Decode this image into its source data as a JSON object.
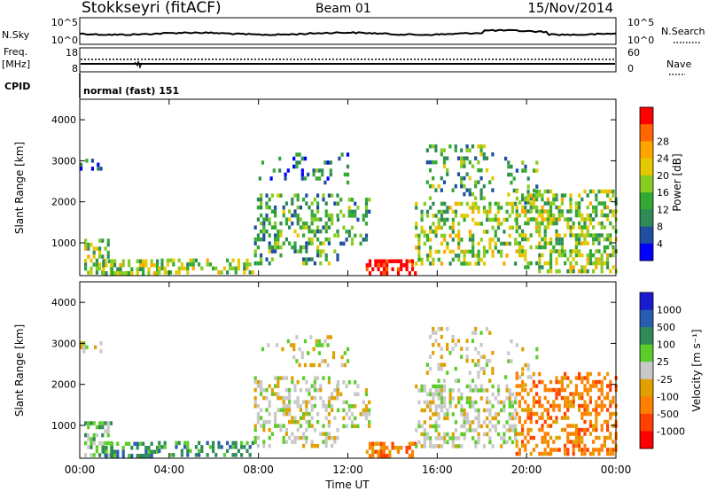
{
  "header": {
    "station": "Stokkseyri (fitACF)",
    "beam": "Beam 01",
    "date": "15/Nov/2014"
  },
  "noise_panel": {
    "left_label": "N.Sky",
    "left_ticks": [
      "10^5",
      "10^0"
    ],
    "right_label": "N.Search",
    "right_ticks": [
      "10^5",
      "10^0"
    ]
  },
  "freq_panel": {
    "left_label_1": "Freq.",
    "left_label_2": "[MHz]",
    "left_ticks": [
      "18",
      "8"
    ],
    "right_label": "Nave",
    "right_ticks": [
      "60",
      "0"
    ]
  },
  "cpid": {
    "label": "CPID",
    "program": "normal (fast) 151"
  },
  "colors": {
    "power": [
      "#0000ff",
      "#1e4fa0",
      "#2e8b57",
      "#33a833",
      "#88cc22",
      "#e6c800",
      "#ffa500",
      "#ff6600",
      "#ff0000"
    ],
    "velocity": [
      "#1a1ad0",
      "#2a5db0",
      "#2e8b57",
      "#5ccc2a",
      "#c8c8c8",
      "#e0a000",
      "#ff8000",
      "#ff4000",
      "#ff0000"
    ]
  },
  "chart_data": [
    {
      "type": "heatmap",
      "title": "",
      "xlabel": "Time UT",
      "ylabel": "Slant Range [km]",
      "x_ticks": [
        "00:00",
        "04:00",
        "08:00",
        "12:00",
        "16:00",
        "20:00",
        "00:00"
      ],
      "y_ticks": [
        "1000",
        "2000",
        "3000",
        "4000"
      ],
      "ylim": [
        200,
        4500
      ],
      "colorbar_label": "Power [dB]",
      "colorbar_ticks": [
        "4",
        "8",
        "12",
        "16",
        "20",
        "24",
        "28"
      ]
    },
    {
      "type": "heatmap",
      "title": "",
      "xlabel": "Time UT",
      "ylabel": "Slant Range [km]",
      "x_ticks": [
        "00:00",
        "04:00",
        "08:00",
        "12:00",
        "16:00",
        "20:00",
        "00:00"
      ],
      "y_ticks": [
        "1000",
        "2000",
        "3000",
        "4000"
      ],
      "ylim": [
        200,
        4500
      ],
      "colorbar_label": "Velocity [m s⁻¹]",
      "colorbar_ticks": [
        "1000",
        "500",
        "100",
        "25",
        "-25",
        "-100",
        "-500",
        "-1000"
      ]
    }
  ]
}
